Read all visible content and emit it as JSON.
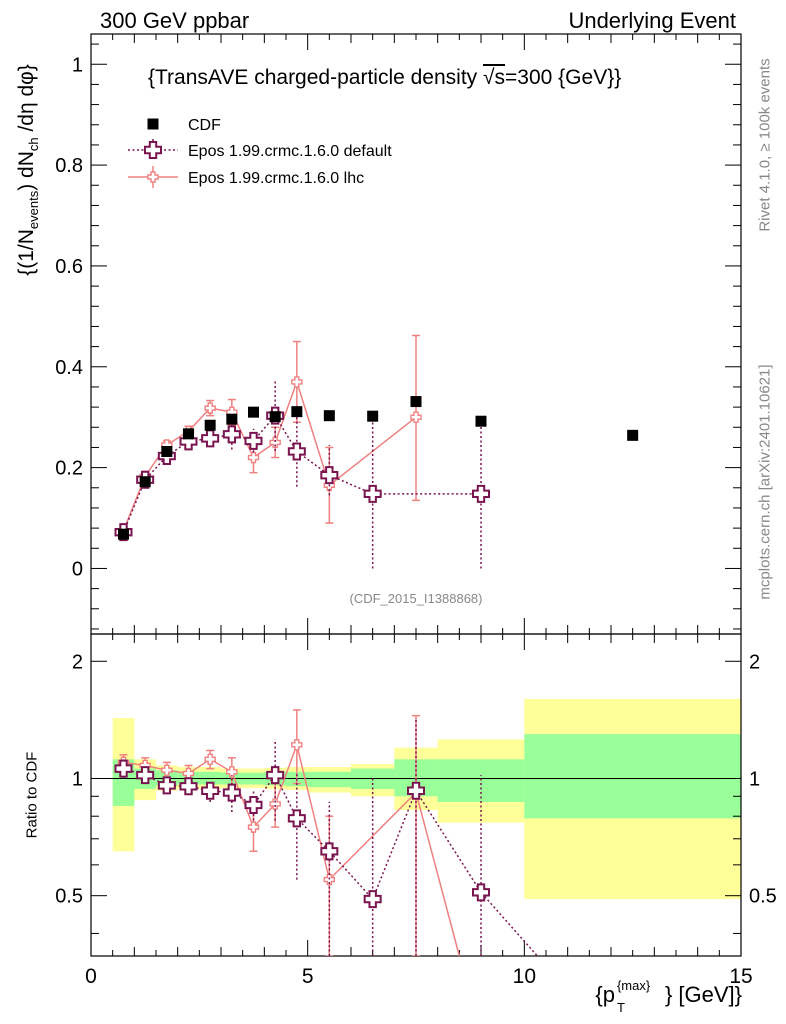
{
  "header": {
    "left": "300 GeV ppbar",
    "right": "Underlying Event"
  },
  "side": {
    "rivet": "Rivet 4.1.0, ≥ 100k events",
    "mcplots": "mcplots.cern.ch [arXiv:2401.10621]"
  },
  "watermark": "(CDF_2015_I1388868)",
  "chart_data": {
    "type": "scatter",
    "title": "{TransAVE charged-particle density √s=300 {GeV}}",
    "title_main": "{TransAVE charged-particle density ",
    "title_sqrt": "√s",
    "title_rest": "=300 {GeV}}",
    "xlabel": "{p_T^{max}} [GeV]",
    "xlabel_parts": {
      "p": "{p",
      "sub": "T",
      "sup": "{max}",
      "rest": "} [GeV]}"
    },
    "ylabel": "{(1/N_events) dN_ch /dη dφ}",
    "ylabel_parts": {
      "a": "{(1/N",
      "sub1": "events",
      "b": ") dN",
      "sub2": "ch",
      "c": " /dη dφ}"
    },
    "xlim": [
      0,
      15
    ],
    "ylim": [
      -0.13,
      1.06
    ],
    "x_ticks": [
      "0",
      "5",
      "10",
      "15"
    ],
    "y_ticks": [
      "0",
      "0.2",
      "0.4",
      "0.6",
      "0.8",
      "1"
    ],
    "ratio": {
      "ylabel": "Ratio to CDF",
      "ylim": [
        0.35,
        2.35
      ],
      "y_ticks": [
        "0.5",
        "1",
        "2"
      ],
      "bands": [
        {
          "x0": 0.5,
          "x1": 1.0,
          "y1lo": 0.85,
          "y1hi": 1.12,
          "y2lo": 0.65,
          "y2hi": 1.43
        },
        {
          "x0": 1.0,
          "x1": 1.5,
          "y1lo": 0.94,
          "y1hi": 1.06,
          "y2lo": 0.88,
          "y2hi": 1.12
        },
        {
          "x0": 1.5,
          "x1": 2.0,
          "y1lo": 0.96,
          "y1hi": 1.05,
          "y2lo": 0.93,
          "y2hi": 1.08
        },
        {
          "x0": 2.0,
          "x1": 2.5,
          "y1lo": 0.965,
          "y1hi": 1.04,
          "y2lo": 0.94,
          "y2hi": 1.07
        },
        {
          "x0": 2.5,
          "x1": 3.0,
          "y1lo": 0.965,
          "y1hi": 1.04,
          "y2lo": 0.94,
          "y2hi": 1.07
        },
        {
          "x0": 3.0,
          "x1": 3.5,
          "y1lo": 0.965,
          "y1hi": 1.035,
          "y2lo": 0.945,
          "y2hi": 1.06
        },
        {
          "x0": 3.5,
          "x1": 4.0,
          "y1lo": 0.965,
          "y1hi": 1.035,
          "y2lo": 0.945,
          "y2hi": 1.06
        },
        {
          "x0": 4.0,
          "x1": 4.5,
          "y1lo": 0.96,
          "y1hi": 1.04,
          "y2lo": 0.94,
          "y2hi": 1.065
        },
        {
          "x0": 4.5,
          "x1": 5.0,
          "y1lo": 0.955,
          "y1hi": 1.04,
          "y2lo": 0.935,
          "y2hi": 1.07
        },
        {
          "x0": 5.0,
          "x1": 6.0,
          "y1lo": 0.95,
          "y1hi": 1.04,
          "y2lo": 0.92,
          "y2hi": 1.07
        },
        {
          "x0": 6.0,
          "x1": 7.0,
          "y1lo": 0.94,
          "y1hi": 1.06,
          "y2lo": 0.9,
          "y2hi": 1.09
        },
        {
          "x0": 7.0,
          "x1": 8.0,
          "y1lo": 0.9,
          "y1hi": 1.12,
          "y2lo": 0.83,
          "y2hi": 1.2
        },
        {
          "x0": 8.0,
          "x1": 10.0,
          "y1lo": 0.87,
          "y1hi": 1.12,
          "y2lo": 0.77,
          "y2hi": 1.26
        },
        {
          "x0": 10.0,
          "x1": 15.0,
          "y1lo": 0.79,
          "y1hi": 1.3,
          "y2lo": 0.49,
          "y2hi": 1.6
        }
      ]
    },
    "series": [
      {
        "name": "CDF",
        "marker": "square",
        "color": "#000000",
        "points": [
          {
            "x": 0.75,
            "y": 0.068,
            "lo": 0.068,
            "hi": 0.068
          },
          {
            "x": 1.25,
            "y": 0.172,
            "lo": 0.172,
            "hi": 0.172
          },
          {
            "x": 1.75,
            "y": 0.232,
            "lo": 0.232,
            "hi": 0.232
          },
          {
            "x": 2.25,
            "y": 0.267,
            "lo": 0.267,
            "hi": 0.267
          },
          {
            "x": 2.75,
            "y": 0.284,
            "lo": 0.284,
            "hi": 0.284
          },
          {
            "x": 3.25,
            "y": 0.296,
            "lo": 0.296,
            "hi": 0.296
          },
          {
            "x": 3.75,
            "y": 0.31,
            "lo": 0.31,
            "hi": 0.31
          },
          {
            "x": 4.25,
            "y": 0.301,
            "lo": 0.301,
            "hi": 0.301
          },
          {
            "x": 4.75,
            "y": 0.311,
            "lo": 0.311,
            "hi": 0.311
          },
          {
            "x": 5.5,
            "y": 0.303,
            "lo": 0.303,
            "hi": 0.303
          },
          {
            "x": 6.5,
            "y": 0.302,
            "lo": 0.302,
            "hi": 0.302
          },
          {
            "x": 7.5,
            "y": 0.331,
            "lo": 0.331,
            "hi": 0.331
          },
          {
            "x": 9.0,
            "y": 0.292,
            "lo": 0.292,
            "hi": 0.292
          },
          {
            "x": 12.5,
            "y": 0.264,
            "lo": 0.264,
            "hi": 0.264
          }
        ]
      },
      {
        "name": "Epos 1.99.crmc.1.6.0 default",
        "marker": "cross",
        "color": "#7a1450",
        "dash": "dotted",
        "points": [
          {
            "x": 0.75,
            "y": 0.072,
            "lo": 0.068,
            "hi": 0.076
          },
          {
            "x": 1.25,
            "y": 0.176,
            "lo": 0.169,
            "hi": 0.183
          },
          {
            "x": 1.75,
            "y": 0.223,
            "lo": 0.214,
            "hi": 0.232
          },
          {
            "x": 2.25,
            "y": 0.252,
            "lo": 0.242,
            "hi": 0.262
          },
          {
            "x": 2.75,
            "y": 0.258,
            "lo": 0.243,
            "hi": 0.273
          },
          {
            "x": 3.25,
            "y": 0.266,
            "lo": 0.236,
            "hi": 0.296
          },
          {
            "x": 3.75,
            "y": 0.253,
            "lo": 0.23,
            "hi": 0.277
          },
          {
            "x": 4.25,
            "y": 0.303,
            "lo": 0.233,
            "hi": 0.373
          },
          {
            "x": 4.75,
            "y": 0.232,
            "lo": 0.162,
            "hi": 0.302
          },
          {
            "x": 5.5,
            "y": 0.185,
            "lo": 0.145,
            "hi": 0.245
          },
          {
            "x": 6.5,
            "y": 0.148,
            "lo": 0.0,
            "hi": 0.298
          },
          {
            "x": 9.0,
            "y": 0.148,
            "lo": 0.0,
            "hi": 0.298
          }
        ],
        "ratio": [
          {
            "x": 0.75,
            "y": 1.06,
            "lo": 1.0,
            "hi": 1.12
          },
          {
            "x": 1.25,
            "y": 1.02,
            "lo": 0.98,
            "hi": 1.06
          },
          {
            "x": 1.75,
            "y": 0.96,
            "lo": 0.92,
            "hi": 1.0
          },
          {
            "x": 2.25,
            "y": 0.955,
            "lo": 0.91,
            "hi": 1.0
          },
          {
            "x": 2.75,
            "y": 0.93,
            "lo": 0.87,
            "hi": 0.99
          },
          {
            "x": 3.25,
            "y": 0.92,
            "lo": 0.82,
            "hi": 1.02
          },
          {
            "x": 3.75,
            "y": 0.855,
            "lo": 0.78,
            "hi": 0.93
          },
          {
            "x": 4.25,
            "y": 1.02,
            "lo": 0.78,
            "hi": 1.26
          },
          {
            "x": 4.75,
            "y": 0.79,
            "lo": 0.55,
            "hi": 1.03
          },
          {
            "x": 5.5,
            "y": 0.65,
            "lo": 0.35,
            "hi": 0.87
          },
          {
            "x": 6.5,
            "y": 0.49,
            "lo": 0.35,
            "hi": 1.0
          },
          {
            "x": 7.5,
            "y": 0.93,
            "lo": 0.35,
            "hi": 1.42
          },
          {
            "x": 9.0,
            "y": 0.51,
            "lo": 0.35,
            "hi": 1.02
          },
          {
            "x": 10.3,
            "y": 0.35,
            "lo": 0.35,
            "hi": 0.35
          }
        ]
      },
      {
        "name": "Epos 1.99.crmc.1.6.0 lhc",
        "marker": "cross-small",
        "color": "#f08080",
        "dash": "solid",
        "points": [
          {
            "x": 0.75,
            "y": 0.075,
            "lo": 0.071,
            "hi": 0.079
          },
          {
            "x": 1.25,
            "y": 0.183,
            "lo": 0.176,
            "hi": 0.19
          },
          {
            "x": 1.75,
            "y": 0.245,
            "lo": 0.237,
            "hi": 0.253
          },
          {
            "x": 2.25,
            "y": 0.272,
            "lo": 0.262,
            "hi": 0.282
          },
          {
            "x": 2.75,
            "y": 0.318,
            "lo": 0.303,
            "hi": 0.333
          },
          {
            "x": 3.25,
            "y": 0.31,
            "lo": 0.285,
            "hi": 0.335
          },
          {
            "x": 3.75,
            "y": 0.22,
            "lo": 0.19,
            "hi": 0.25
          },
          {
            "x": 4.25,
            "y": 0.25,
            "lo": 0.22,
            "hi": 0.28
          },
          {
            "x": 4.75,
            "y": 0.37,
            "lo": 0.29,
            "hi": 0.45
          },
          {
            "x": 5.5,
            "y": 0.165,
            "lo": 0.09,
            "hi": 0.24
          },
          {
            "x": 7.5,
            "y": 0.3,
            "lo": 0.135,
            "hi": 0.462
          }
        ],
        "ratio": [
          {
            "x": 0.75,
            "y": 1.1,
            "lo": 1.05,
            "hi": 1.15
          },
          {
            "x": 1.25,
            "y": 1.08,
            "lo": 1.03,
            "hi": 1.13
          },
          {
            "x": 1.75,
            "y": 1.05,
            "lo": 1.0,
            "hi": 1.1
          },
          {
            "x": 2.25,
            "y": 1.03,
            "lo": 0.98,
            "hi": 1.08
          },
          {
            "x": 2.75,
            "y": 1.12,
            "lo": 1.06,
            "hi": 1.18
          },
          {
            "x": 3.25,
            "y": 1.04,
            "lo": 0.95,
            "hi": 1.13
          },
          {
            "x": 3.75,
            "y": 0.75,
            "lo": 0.65,
            "hi": 0.85
          },
          {
            "x": 4.25,
            "y": 0.86,
            "lo": 0.75,
            "hi": 0.97
          },
          {
            "x": 4.75,
            "y": 1.22,
            "lo": 0.97,
            "hi": 1.5
          },
          {
            "x": 5.5,
            "y": 0.55,
            "lo": 0.35,
            "hi": 0.8
          },
          {
            "x": 7.5,
            "y": 0.92,
            "lo": 0.35,
            "hi": 1.45
          },
          {
            "x": 8.5,
            "y": 0.35,
            "lo": 0.35,
            "hi": 0.35
          }
        ]
      }
    ]
  }
}
